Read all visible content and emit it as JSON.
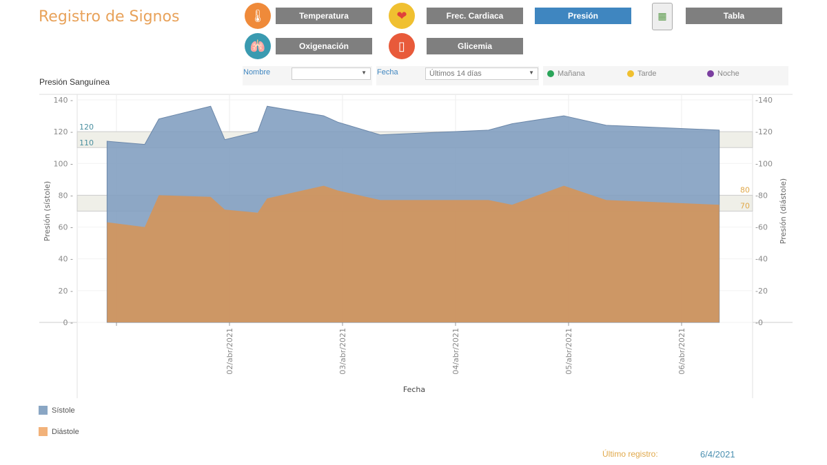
{
  "header": {
    "title": "Registro de Signos"
  },
  "nav": {
    "buttons": [
      {
        "label": "Temperatura",
        "icon": "thermometer-icon",
        "active": false
      },
      {
        "label": "Frec. Cardiaca",
        "icon": "heart-icon",
        "active": false
      },
      {
        "label": "Presión",
        "active": true
      },
      {
        "label": "Tabla",
        "icon": "spreadsheet-icon",
        "active": false
      },
      {
        "label": "Oxigenación",
        "icon": "lungs-icon",
        "active": false
      },
      {
        "label": "Glicemia",
        "icon": "glucometer-icon",
        "active": false
      }
    ]
  },
  "filters": {
    "nombre_label": "Nombre",
    "nombre_value": "",
    "fecha_label": "Fecha",
    "fecha_value": "Últimos 14 días",
    "shifts": [
      {
        "label": "Mañana",
        "color": "#2aa55a"
      },
      {
        "label": "Tarde",
        "color": "#f0c030"
      },
      {
        "label": "Noche",
        "color": "#7b3fa0"
      }
    ]
  },
  "subtitle": "Presión Sanguínea",
  "chart_data": {
    "type": "area",
    "xlabel": "Fecha",
    "ylabel_left": "Presión (sístole)",
    "ylabel_right": "Presión (diástole)",
    "ylim": [
      0,
      140
    ],
    "yticks": [
      0,
      20,
      40,
      60,
      80,
      100,
      120,
      140
    ],
    "xticks": [
      {
        "date": "2021-04-01",
        "label": ""
      },
      {
        "date": "2021-04-02",
        "label": "02/abr/2021"
      },
      {
        "date": "2021-04-03",
        "label": "03/abr/2021"
      },
      {
        "date": "2021-04-04",
        "label": "04/abr/2021"
      },
      {
        "date": "2021-04-05",
        "label": "05/abr/2021"
      },
      {
        "date": "2021-04-06",
        "label": "06/abr/2021"
      }
    ],
    "x": [
      "2021-03-31T22:00",
      "2021-04-01T06:00",
      "2021-04-01T09:00",
      "2021-04-01T20:00",
      "2021-04-01T23:00",
      "2021-04-02T06:00",
      "2021-04-02T08:00",
      "2021-04-02T20:00",
      "2021-04-02T23:00",
      "2021-04-03T08:00",
      "2021-04-04T07:00",
      "2021-04-04T12:00",
      "2021-04-04T23:00",
      "2021-04-05T08:00",
      "2021-04-06T08:00"
    ],
    "series": [
      {
        "name": "Sístole",
        "color": "#8aa6c4",
        "values": [
          114,
          112,
          128,
          136,
          115,
          120,
          136,
          130,
          126,
          118,
          121,
          125,
          130,
          124,
          121
        ]
      },
      {
        "name": "Diástole",
        "color": "#f2b27a",
        "values": [
          63,
          60,
          80,
          79,
          71,
          69,
          78,
          86,
          83,
          77,
          77,
          74,
          86,
          77,
          74
        ]
      }
    ],
    "reference_bands": [
      {
        "from": 110,
        "to": 120,
        "labels": [
          "110",
          "120"
        ],
        "color": "#4a8fa0"
      },
      {
        "from": 70,
        "to": 80,
        "labels": [
          "70",
          "80"
        ],
        "color": "#e0a84a"
      }
    ],
    "grid": true,
    "legend": "bottom-left"
  },
  "footer": {
    "label": "Último registro:",
    "value": "6/4/2021"
  }
}
